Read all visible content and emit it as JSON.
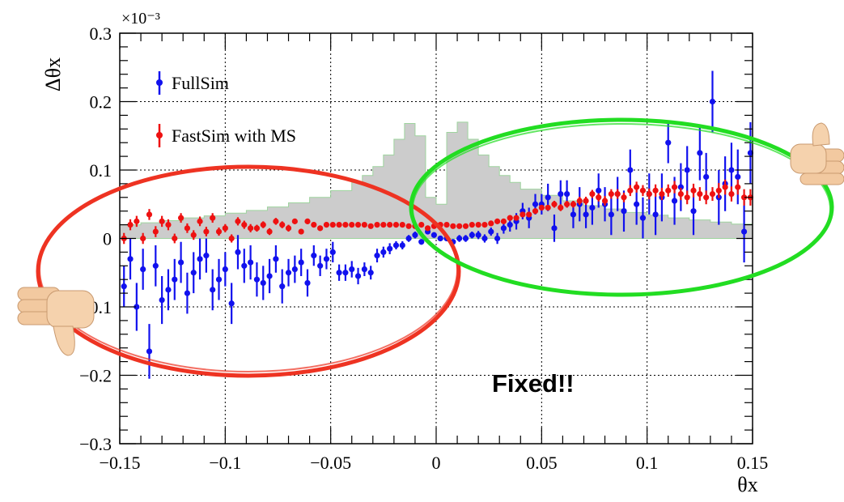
{
  "chart_data": {
    "type": "scatter",
    "title": "",
    "xlabel": "θx",
    "ylabel": "Δθx",
    "y_exponent_label": "×10⁻³",
    "xlim": [
      -0.15,
      0.15
    ],
    "ylim": [
      -0.3,
      0.3
    ],
    "x_ticks": [
      "−0.15",
      "−0.1",
      "−0.05",
      "0",
      "0.05",
      "0.1",
      "0.15"
    ],
    "y_ticks": [
      "−0.3",
      "−0.2",
      "−0.1",
      "0",
      "0.1",
      "0.2",
      "0.3"
    ],
    "grid": true,
    "legend": "top-left",
    "series": [
      {
        "name": "FullSim",
        "color": "#1111ee",
        "x": [
          -0.148,
          -0.145,
          -0.142,
          -0.139,
          -0.136,
          -0.133,
          -0.13,
          -0.127,
          -0.124,
          -0.121,
          -0.118,
          -0.115,
          -0.112,
          -0.109,
          -0.106,
          -0.103,
          -0.1,
          -0.097,
          -0.094,
          -0.091,
          -0.088,
          -0.085,
          -0.082,
          -0.079,
          -0.076,
          -0.073,
          -0.07,
          -0.067,
          -0.064,
          -0.061,
          -0.058,
          -0.055,
          -0.052,
          -0.049,
          -0.046,
          -0.043,
          -0.04,
          -0.037,
          -0.034,
          -0.031,
          -0.028,
          -0.025,
          -0.022,
          -0.019,
          -0.016,
          -0.013,
          -0.01,
          -0.007,
          -0.004,
          -0.001,
          0.002,
          0.005,
          0.008,
          0.011,
          0.014,
          0.017,
          0.02,
          0.023,
          0.026,
          0.029,
          0.032,
          0.035,
          0.038,
          0.041,
          0.044,
          0.047,
          0.05,
          0.053,
          0.056,
          0.059,
          0.062,
          0.065,
          0.068,
          0.071,
          0.074,
          0.077,
          0.08,
          0.083,
          0.086,
          0.089,
          0.092,
          0.095,
          0.098,
          0.101,
          0.104,
          0.107,
          0.11,
          0.113,
          0.116,
          0.119,
          0.122,
          0.125,
          0.128,
          0.131,
          0.134,
          0.137,
          0.14,
          0.143,
          0.146,
          0.149
        ],
        "y": [
          -0.07,
          -0.03,
          -0.1,
          -0.045,
          -0.165,
          -0.04,
          -0.09,
          -0.075,
          -0.06,
          -0.035,
          -0.08,
          -0.05,
          -0.03,
          -0.025,
          -0.075,
          -0.06,
          -0.045,
          -0.095,
          -0.02,
          -0.04,
          -0.035,
          -0.06,
          -0.065,
          -0.055,
          -0.03,
          -0.07,
          -0.05,
          -0.045,
          -0.035,
          -0.065,
          -0.025,
          -0.04,
          -0.03,
          -0.02,
          -0.05,
          -0.05,
          -0.045,
          -0.055,
          -0.045,
          -0.05,
          -0.025,
          -0.02,
          -0.015,
          -0.01,
          -0.01,
          0.0,
          0.005,
          -0.005,
          0.01,
          0.005,
          0.0,
          0.0,
          -0.005,
          0.0,
          0.0,
          0.005,
          0.005,
          0.0,
          0.01,
          0.0,
          0.015,
          0.02,
          0.025,
          0.04,
          0.03,
          0.05,
          0.05,
          0.06,
          0.015,
          0.065,
          0.065,
          0.035,
          0.05,
          0.035,
          0.045,
          0.07,
          0.05,
          0.035,
          0.065,
          0.04,
          0.1,
          0.05,
          0.03,
          0.065,
          0.035,
          0.06,
          0.14,
          0.055,
          0.075,
          0.1,
          0.04,
          0.125,
          0.09,
          0.2,
          0.06,
          0.08,
          0.1,
          0.09,
          0.01,
          0.125
        ],
        "err": [
          0.03,
          0.03,
          0.035,
          0.03,
          0.04,
          0.03,
          0.035,
          0.03,
          0.03,
          0.03,
          0.03,
          0.03,
          0.03,
          0.025,
          0.03,
          0.03,
          0.025,
          0.03,
          0.025,
          0.025,
          0.025,
          0.025,
          0.025,
          0.025,
          0.02,
          0.025,
          0.02,
          0.02,
          0.02,
          0.02,
          0.015,
          0.015,
          0.015,
          0.015,
          0.012,
          0.012,
          0.012,
          0.012,
          0.01,
          0.01,
          0.01,
          0.008,
          0.008,
          0.006,
          0.006,
          0.005,
          0.005,
          0.004,
          0.004,
          0.004,
          0.004,
          0.004,
          0.004,
          0.005,
          0.005,
          0.005,
          0.006,
          0.006,
          0.006,
          0.008,
          0.008,
          0.01,
          0.012,
          0.012,
          0.015,
          0.015,
          0.015,
          0.02,
          0.02,
          0.02,
          0.02,
          0.02,
          0.025,
          0.02,
          0.025,
          0.025,
          0.025,
          0.03,
          0.025,
          0.03,
          0.03,
          0.03,
          0.03,
          0.03,
          0.03,
          0.035,
          0.03,
          0.035,
          0.035,
          0.035,
          0.035,
          0.04,
          0.035,
          0.045,
          0.04,
          0.04,
          0.04,
          0.04,
          0.045,
          0.045
        ]
      },
      {
        "name": "FastSim with MS",
        "color": "#ee1111",
        "x": [
          -0.148,
          -0.145,
          -0.142,
          -0.139,
          -0.136,
          -0.133,
          -0.13,
          -0.127,
          -0.124,
          -0.121,
          -0.118,
          -0.115,
          -0.112,
          -0.109,
          -0.106,
          -0.103,
          -0.1,
          -0.097,
          -0.094,
          -0.091,
          -0.088,
          -0.085,
          -0.082,
          -0.079,
          -0.076,
          -0.073,
          -0.07,
          -0.067,
          -0.064,
          -0.061,
          -0.058,
          -0.055,
          -0.052,
          -0.049,
          -0.046,
          -0.043,
          -0.04,
          -0.037,
          -0.034,
          -0.031,
          -0.028,
          -0.025,
          -0.022,
          -0.019,
          -0.016,
          -0.013,
          -0.01,
          -0.007,
          -0.004,
          -0.001,
          0.002,
          0.005,
          0.008,
          0.011,
          0.014,
          0.017,
          0.02,
          0.023,
          0.026,
          0.029,
          0.032,
          0.035,
          0.038,
          0.041,
          0.044,
          0.047,
          0.05,
          0.053,
          0.056,
          0.059,
          0.062,
          0.065,
          0.068,
          0.071,
          0.074,
          0.077,
          0.08,
          0.083,
          0.086,
          0.089,
          0.092,
          0.095,
          0.098,
          0.101,
          0.104,
          0.107,
          0.11,
          0.113,
          0.116,
          0.119,
          0.122,
          0.125,
          0.128,
          0.131,
          0.134,
          0.137,
          0.14,
          0.143,
          0.146,
          0.149
        ],
        "y": [
          0.0,
          0.02,
          0.025,
          0.0,
          0.035,
          0.01,
          0.025,
          0.02,
          0.0,
          0.03,
          0.015,
          0.005,
          0.025,
          0.01,
          0.03,
          0.01,
          0.015,
          0.0,
          0.025,
          0.02,
          0.015,
          0.015,
          0.02,
          0.01,
          0.025,
          0.02,
          0.015,
          0.025,
          0.01,
          0.025,
          0.02,
          0.015,
          0.02,
          0.02,
          0.02,
          0.02,
          0.02,
          0.02,
          0.02,
          0.018,
          0.02,
          0.02,
          0.02,
          0.02,
          0.02,
          0.018,
          0.018,
          0.02,
          0.015,
          0.018,
          0.02,
          0.02,
          0.018,
          0.018,
          0.018,
          0.02,
          0.02,
          0.02,
          0.022,
          0.025,
          0.025,
          0.03,
          0.03,
          0.035,
          0.035,
          0.04,
          0.045,
          0.045,
          0.05,
          0.045,
          0.05,
          0.05,
          0.055,
          0.055,
          0.065,
          0.06,
          0.055,
          0.065,
          0.065,
          0.06,
          0.07,
          0.075,
          0.07,
          0.065,
          0.07,
          0.065,
          0.07,
          0.075,
          0.065,
          0.06,
          0.07,
          0.065,
          0.06,
          0.065,
          0.07,
          0.075,
          0.065,
          0.075,
          0.06,
          0.06
        ],
        "err": [
          0.008,
          0.008,
          0.008,
          0.008,
          0.008,
          0.008,
          0.008,
          0.008,
          0.007,
          0.007,
          0.007,
          0.007,
          0.007,
          0.007,
          0.007,
          0.006,
          0.006,
          0.006,
          0.006,
          0.006,
          0.006,
          0.005,
          0.005,
          0.005,
          0.005,
          0.005,
          0.005,
          0.004,
          0.004,
          0.004,
          0.004,
          0.004,
          0.004,
          0.003,
          0.003,
          0.003,
          0.003,
          0.003,
          0.003,
          0.003,
          0.002,
          0.002,
          0.002,
          0.002,
          0.002,
          0.002,
          0.002,
          0.002,
          0.002,
          0.002,
          0.002,
          0.002,
          0.002,
          0.002,
          0.002,
          0.002,
          0.002,
          0.002,
          0.002,
          0.003,
          0.003,
          0.003,
          0.003,
          0.003,
          0.004,
          0.004,
          0.004,
          0.004,
          0.005,
          0.005,
          0.005,
          0.005,
          0.006,
          0.006,
          0.006,
          0.006,
          0.007,
          0.007,
          0.007,
          0.007,
          0.008,
          0.008,
          0.008,
          0.008,
          0.009,
          0.009,
          0.009,
          0.009,
          0.009,
          0.01,
          0.01,
          0.01,
          0.01,
          0.01,
          0.011,
          0.011,
          0.011,
          0.011,
          0.012,
          0.012
        ]
      }
    ],
    "background_histogram": {
      "color": "#cccccc",
      "edges": [
        -0.15,
        -0.14,
        -0.13,
        -0.12,
        -0.11,
        -0.1,
        -0.09,
        -0.08,
        -0.07,
        -0.06,
        -0.05,
        -0.04,
        -0.035,
        -0.03,
        -0.025,
        -0.02,
        -0.015,
        -0.01,
        -0.005,
        0.0,
        0.005,
        0.01,
        0.015,
        0.02,
        0.025,
        0.03,
        0.035,
        0.04,
        0.05,
        0.06,
        0.07,
        0.08,
        0.09,
        0.1,
        0.11,
        0.12,
        0.13,
        0.14,
        0.15
      ],
      "values": [
        0.02,
        0.023,
        0.026,
        0.03,
        0.033,
        0.037,
        0.041,
        0.046,
        0.052,
        0.06,
        0.07,
        0.082,
        0.092,
        0.105,
        0.122,
        0.145,
        0.168,
        0.15,
        0.06,
        0.05,
        0.155,
        0.17,
        0.145,
        0.122,
        0.105,
        0.092,
        0.082,
        0.072,
        0.063,
        0.055,
        0.048,
        0.043,
        0.038,
        0.034,
        0.03,
        0.027,
        0.024,
        0.021
      ]
    },
    "annotations": [
      {
        "text": "Fixed!!"
      }
    ]
  },
  "icons": {
    "thumbs_down": "thumbs-down-icon",
    "thumbs_up": "thumbs-up-icon"
  }
}
